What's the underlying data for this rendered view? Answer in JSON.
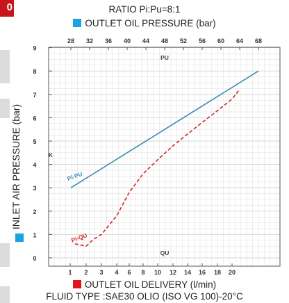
{
  "badge": "0",
  "ratio_label": "RATIO Pi:Pu=8:1",
  "colors": {
    "pu_line": "#3c8fb0",
    "qu_line": "#d0262c",
    "top_marker": "#1aa3e0",
    "bottom_marker": "#e0141e",
    "grid": "#d4d4d4"
  },
  "chart_data": {
    "type": "line",
    "title": "RATIO Pi:Pu=8:1",
    "top_axis_label": "OUTLET OIL PRESSURE (bar)",
    "bottom_axis_label": "OUTLET OIL DELIVERY (l/min)",
    "ylabel": "INLET AIR PRESSURE (bar)",
    "subtitle": "FLUID TYPE :SAE30 OLIO (ISO VG 100)-20°C",
    "x_top_ticks": [
      "28",
      "32",
      "36",
      "40",
      "44",
      "48",
      "52",
      "56",
      "60",
      "64",
      "68"
    ],
    "x_bottom_ticks": [
      "1",
      "2",
      "3",
      "4",
      "6",
      "8",
      "10",
      "12",
      "14",
      "16",
      "18",
      "20"
    ],
    "y_ticks": [
      "0",
      "1",
      "2",
      "3",
      "4",
      "5",
      "6",
      "7",
      "8",
      "9"
    ],
    "ylim": [
      0,
      9
    ],
    "annotations": [
      "PU",
      "QU",
      "K"
    ],
    "grid": true,
    "series": [
      {
        "name": "Pi-PU",
        "axis": "top",
        "style": "solid",
        "x": [
          28,
          68
        ],
        "y": [
          3,
          8
        ]
      },
      {
        "name": "Pi-QU",
        "axis": "bottom",
        "style": "dashed",
        "x": [
          1.3,
          2.0,
          2.5,
          3.0,
          4.0,
          6.0,
          8.0,
          10.0,
          12.0,
          14.0,
          16.0,
          18.0,
          20.0,
          21.0
        ],
        "y": [
          0.6,
          0.5,
          0.8,
          1.0,
          1.8,
          2.8,
          3.6,
          4.2,
          4.8,
          5.3,
          5.8,
          6.3,
          6.8,
          7.2
        ]
      }
    ]
  }
}
